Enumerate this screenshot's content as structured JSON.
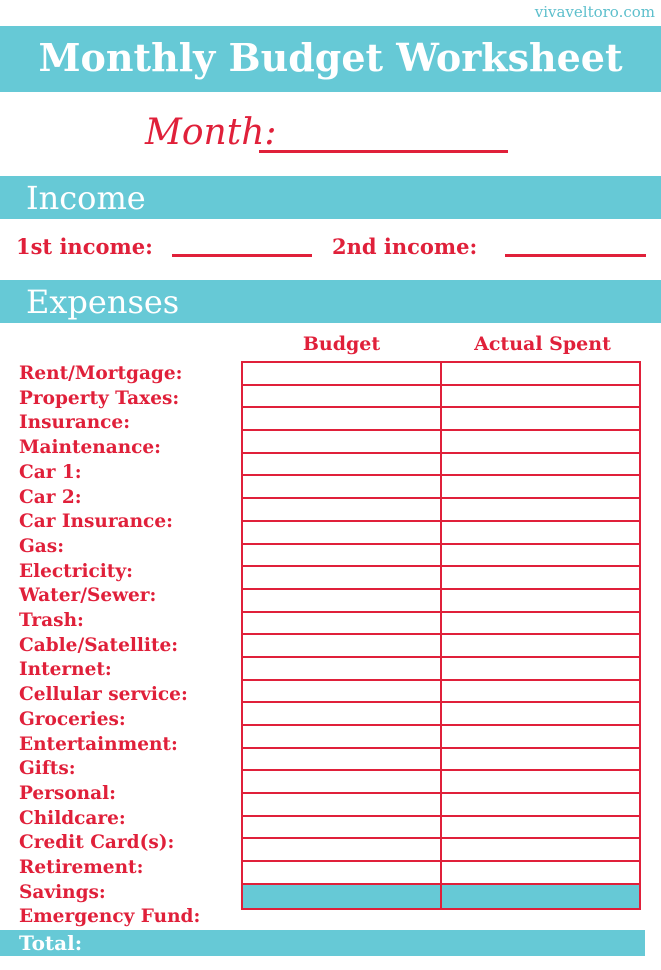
{
  "site": "vivaveltoro.com",
  "title": "Monthly Budget Worksheet",
  "month_label": "Month:",
  "income": {
    "heading": "Income",
    "first_label": "1st income:",
    "second_label": "2nd income:"
  },
  "expenses": {
    "heading": "Expenses",
    "columns": [
      "Budget",
      "Actual Spent"
    ],
    "items": [
      "Rent/Mortgage:",
      "Property Taxes:",
      "Insurance:",
      "Maintenance:",
      "Car 1:",
      "Car 2:",
      "Car Insurance:",
      "Gas:",
      "Electricity:",
      "Water/Sewer:",
      "Trash:",
      "Cable/Satellite:",
      "Internet:",
      "Cellular service:",
      "Groceries:",
      "Entertainment:",
      "Gifts:",
      "Personal:",
      "Childcare:",
      "Credit Card(s):",
      "Retirement:",
      "Savings:",
      "Emergency Fund:"
    ],
    "total_label": "Total:"
  },
  "colors": {
    "teal": "#66c9d6",
    "red": "#e0203a"
  }
}
